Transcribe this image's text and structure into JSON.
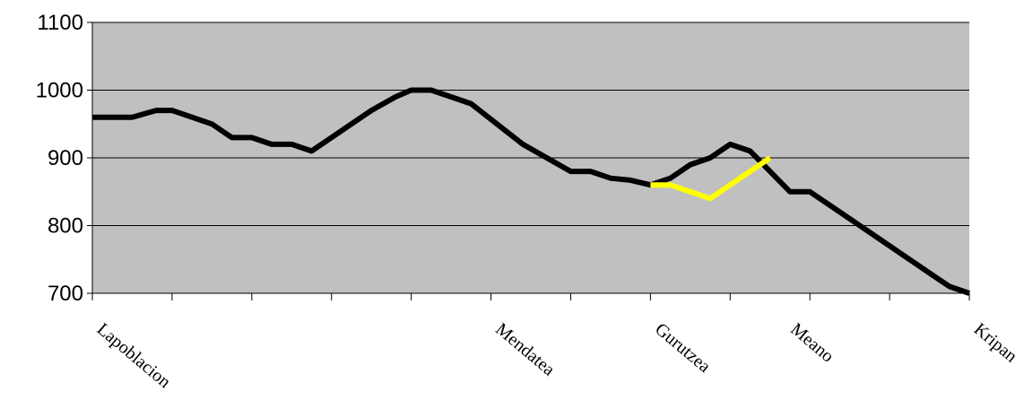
{
  "chart_data": {
    "type": "line",
    "title": "",
    "xlabel": "",
    "ylabel": "",
    "ylim": [
      700,
      1100
    ],
    "yticks": [
      700,
      800,
      900,
      1000,
      1100
    ],
    "xlim": [
      0,
      11
    ],
    "grid": true,
    "plot_background": "#c0c0c0",
    "x_tick_labels": [
      {
        "x": 0,
        "label": "Lapoblacion"
      },
      {
        "x": 5,
        "label": "Mendatea"
      },
      {
        "x": 7,
        "label": "Gurutzea"
      },
      {
        "x": 8.7,
        "label": "Meano"
      },
      {
        "x": 11,
        "label": "Kripan"
      }
    ],
    "series": [
      {
        "color": "#000000",
        "points": [
          [
            0,
            960
          ],
          [
            0.5,
            960
          ],
          [
            0.8,
            970
          ],
          [
            1.0,
            970
          ],
          [
            1.5,
            950
          ],
          [
            1.75,
            930
          ],
          [
            2.0,
            930
          ],
          [
            2.25,
            920
          ],
          [
            2.5,
            920
          ],
          [
            2.75,
            910
          ],
          [
            3.5,
            970
          ],
          [
            3.8,
            990
          ],
          [
            4.0,
            1000
          ],
          [
            4.25,
            1000
          ],
          [
            4.75,
            980
          ],
          [
            5.4,
            920
          ],
          [
            6.0,
            880
          ],
          [
            6.25,
            880
          ],
          [
            6.5,
            870
          ],
          [
            6.75,
            867
          ],
          [
            7.0,
            860
          ],
          [
            7.25,
            870
          ],
          [
            7.5,
            890
          ],
          [
            7.75,
            900
          ],
          [
            8.0,
            920
          ],
          [
            8.25,
            910
          ],
          [
            8.75,
            850
          ],
          [
            9.0,
            850
          ],
          [
            9.5,
            810
          ],
          [
            10.0,
            770
          ],
          [
            10.5,
            730
          ],
          [
            10.75,
            710
          ],
          [
            11.0,
            700
          ]
        ]
      },
      {
        "color": "#ffff00",
        "points": [
          [
            7.0,
            860
          ],
          [
            7.25,
            860
          ],
          [
            7.75,
            840
          ],
          [
            8.5,
            900
          ]
        ]
      }
    ]
  }
}
